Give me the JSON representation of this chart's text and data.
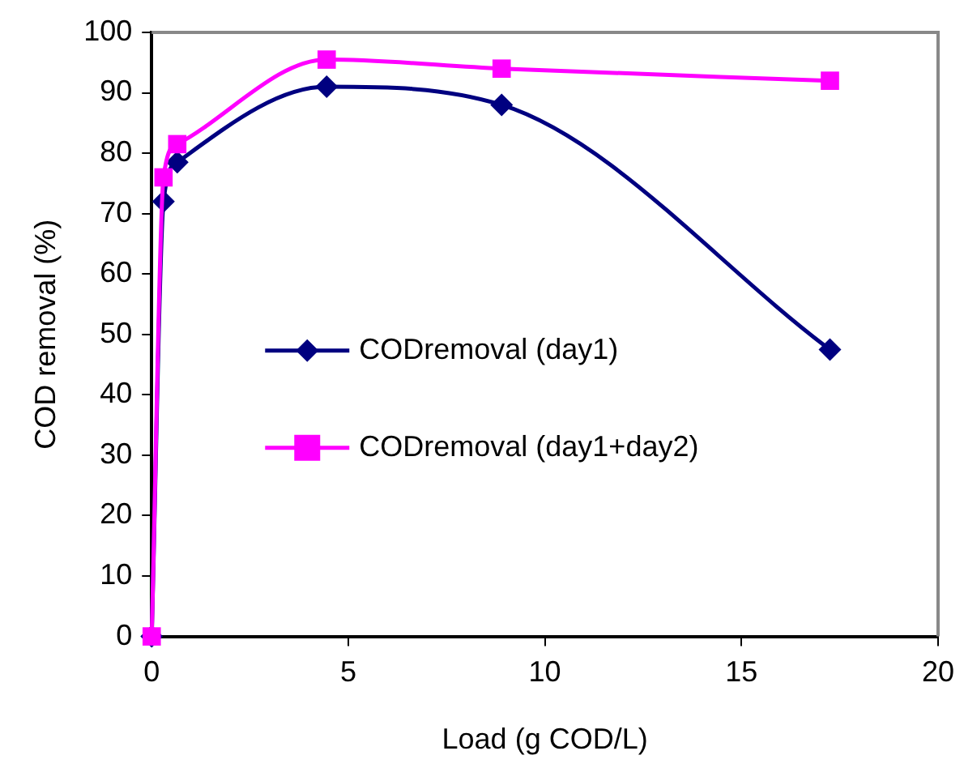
{
  "chart_data": {
    "type": "line",
    "xlabel": "Load (g COD/L)",
    "ylabel": "COD removal (%)",
    "xlim": [
      0,
      20
    ],
    "xticks": [
      0,
      5,
      10,
      15,
      20
    ],
    "ylim": [
      0,
      100
    ],
    "yticks": [
      0,
      10,
      20,
      30,
      40,
      50,
      60,
      70,
      80,
      90,
      100
    ],
    "legend": "center left",
    "line_style": "solid",
    "series": [
      {
        "name": "CODremoval (day1)",
        "color": "#000080",
        "marker": "diamond",
        "x": [
          0,
          0.3,
          0.65,
          4.45,
          8.9,
          17.25
        ],
        "values": [
          0,
          72,
          78.5,
          91,
          88,
          47.5
        ]
      },
      {
        "name": "CODremoval (day1+day2)",
        "color": "#ff00ff",
        "marker": "square",
        "x": [
          0,
          0.3,
          0.65,
          4.45,
          8.9,
          17.25
        ],
        "values": [
          0,
          76,
          81.5,
          95.5,
          94,
          92
        ]
      }
    ]
  }
}
